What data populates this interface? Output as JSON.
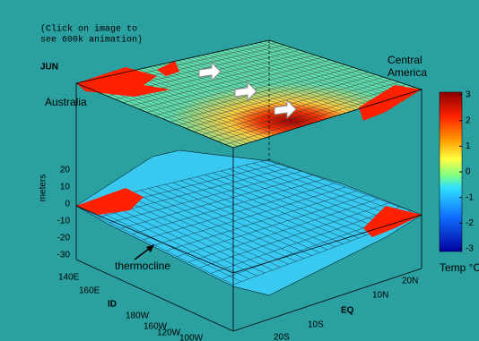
{
  "caption": [
    "(Click on image to",
    "see 600k animation)"
  ],
  "month": "JUN",
  "places": {
    "australia": "Australia",
    "central_america": [
      "Central",
      "America"
    ]
  },
  "depth_axis": {
    "title": "meters",
    "ticks": [
      "20",
      "10",
      "0",
      "-10",
      "-20",
      "-30"
    ]
  },
  "thermocline": "thermocline",
  "longitude_labels": [
    "140E",
    "160E",
    "ID",
    "180W",
    "160W",
    "120W",
    "100W"
  ],
  "latitude_labels": [
    "20S",
    "10S",
    "EQ",
    "10N",
    "20N"
  ],
  "colorbar": {
    "ticks": [
      "3",
      "2",
      "1",
      "0",
      "-1",
      "-2",
      "-3"
    ],
    "title": "Temp °C"
  }
}
